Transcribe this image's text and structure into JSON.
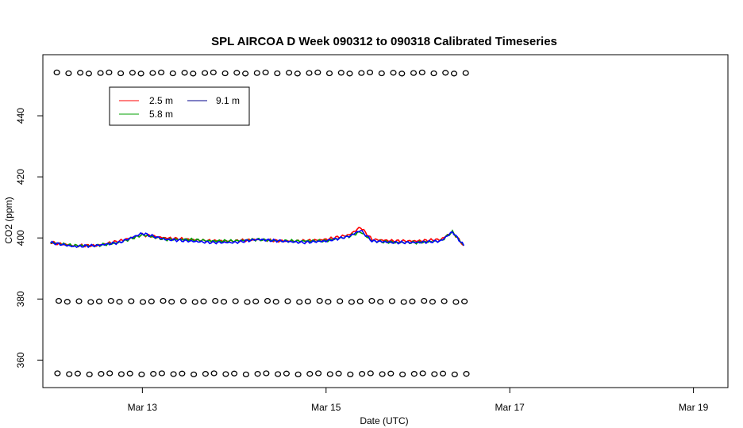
{
  "chart_data": {
    "type": "line",
    "title": "SPL AIRCOA D  Week 090312 to 090318  Calibrated Timeseries",
    "xlabel": "Date (UTC)",
    "ylabel": "CO2 (ppm)",
    "xlim": [
      "2009-03-11T22:00",
      "2009-03-19T09:00"
    ],
    "ylim": [
      351,
      460
    ],
    "x_ticks": [
      "2009-03-13",
      "2009-03-15",
      "2009-03-17",
      "2009-03-19"
    ],
    "x_tick_labels": [
      "Mar 13",
      "Mar 15",
      "Mar 17",
      "Mar 19"
    ],
    "y_ticks": [
      360,
      380,
      400,
      420,
      440
    ],
    "y_tick_labels": [
      "360",
      "380",
      "400",
      "420",
      "440"
    ],
    "grid": false,
    "legend": {
      "placement": "top-left",
      "entries": [
        "2.5 m",
        "9.1 m",
        "5.8 m"
      ]
    },
    "series": [
      {
        "name": "2.5 m",
        "color": "#ff0000",
        "x": [
          "2009-03-12T00:00",
          "2009-03-12T06:00",
          "2009-03-12T12:00",
          "2009-03-12T18:00",
          "2009-03-13T00:00",
          "2009-03-13T06:00",
          "2009-03-13T12:00",
          "2009-03-13T18:00",
          "2009-03-14T00:00",
          "2009-03-14T06:00",
          "2009-03-14T12:00",
          "2009-03-14T18:00",
          "2009-03-15T00:00",
          "2009-03-15T06:00",
          "2009-03-15T09:00",
          "2009-03-15T12:00",
          "2009-03-15T18:00",
          "2009-03-16T00:00",
          "2009-03-16T06:00",
          "2009-03-16T09:00",
          "2009-03-16T12:00"
        ],
        "y": [
          398.5,
          397.5,
          397.5,
          399.0,
          401.0,
          400.0,
          399.5,
          399.0,
          399.0,
          399.5,
          399.0,
          399.0,
          399.5,
          401.0,
          403.5,
          399.5,
          399.0,
          399.0,
          399.5,
          402.0,
          397.5
        ]
      },
      {
        "name": "5.8 m",
        "color": "#00a000",
        "x": [
          "2009-03-12T00:00",
          "2009-03-12T06:00",
          "2009-03-12T12:00",
          "2009-03-12T18:00",
          "2009-03-13T00:00",
          "2009-03-13T06:00",
          "2009-03-13T12:00",
          "2009-03-13T18:00",
          "2009-03-14T00:00",
          "2009-03-14T06:00",
          "2009-03-14T12:00",
          "2009-03-14T18:00",
          "2009-03-15T00:00",
          "2009-03-15T06:00",
          "2009-03-15T09:00",
          "2009-03-15T12:00",
          "2009-03-15T18:00",
          "2009-03-16T00:00",
          "2009-03-16T06:00",
          "2009-03-16T09:00",
          "2009-03-16T12:00"
        ],
        "y": [
          398.5,
          397.5,
          397.5,
          398.5,
          401.0,
          399.5,
          399.5,
          399.0,
          399.0,
          399.5,
          399.0,
          399.0,
          399.0,
          400.5,
          402.0,
          399.0,
          398.5,
          398.5,
          399.0,
          402.0,
          397.5
        ]
      },
      {
        "name": "9.1 m",
        "color": "#0000ff",
        "x": [
          "2009-03-12T00:00",
          "2009-03-12T06:00",
          "2009-03-12T12:00",
          "2009-03-12T18:00",
          "2009-03-13T00:00",
          "2009-03-13T06:00",
          "2009-03-13T12:00",
          "2009-03-13T18:00",
          "2009-03-14T00:00",
          "2009-03-14T06:00",
          "2009-03-14T12:00",
          "2009-03-14T18:00",
          "2009-03-15T00:00",
          "2009-03-15T06:00",
          "2009-03-15T09:00",
          "2009-03-15T12:00",
          "2009-03-15T18:00",
          "2009-03-16T00:00",
          "2009-03-16T06:00",
          "2009-03-16T09:00",
          "2009-03-16T12:00"
        ],
        "y": [
          398.5,
          397.2,
          397.5,
          398.5,
          401.5,
          399.5,
          399.0,
          398.5,
          398.5,
          399.5,
          399.0,
          398.5,
          399.0,
          400.5,
          402.5,
          399.0,
          398.5,
          398.5,
          399.0,
          402.0,
          397.5
        ]
      }
    ],
    "reference_points": {
      "marker": "open-circle",
      "x_start": "2009-03-12T00:00",
      "x_end": "2009-03-16T12:00",
      "y_levels": [
        454.0,
        379.2,
        355.5
      ]
    }
  }
}
